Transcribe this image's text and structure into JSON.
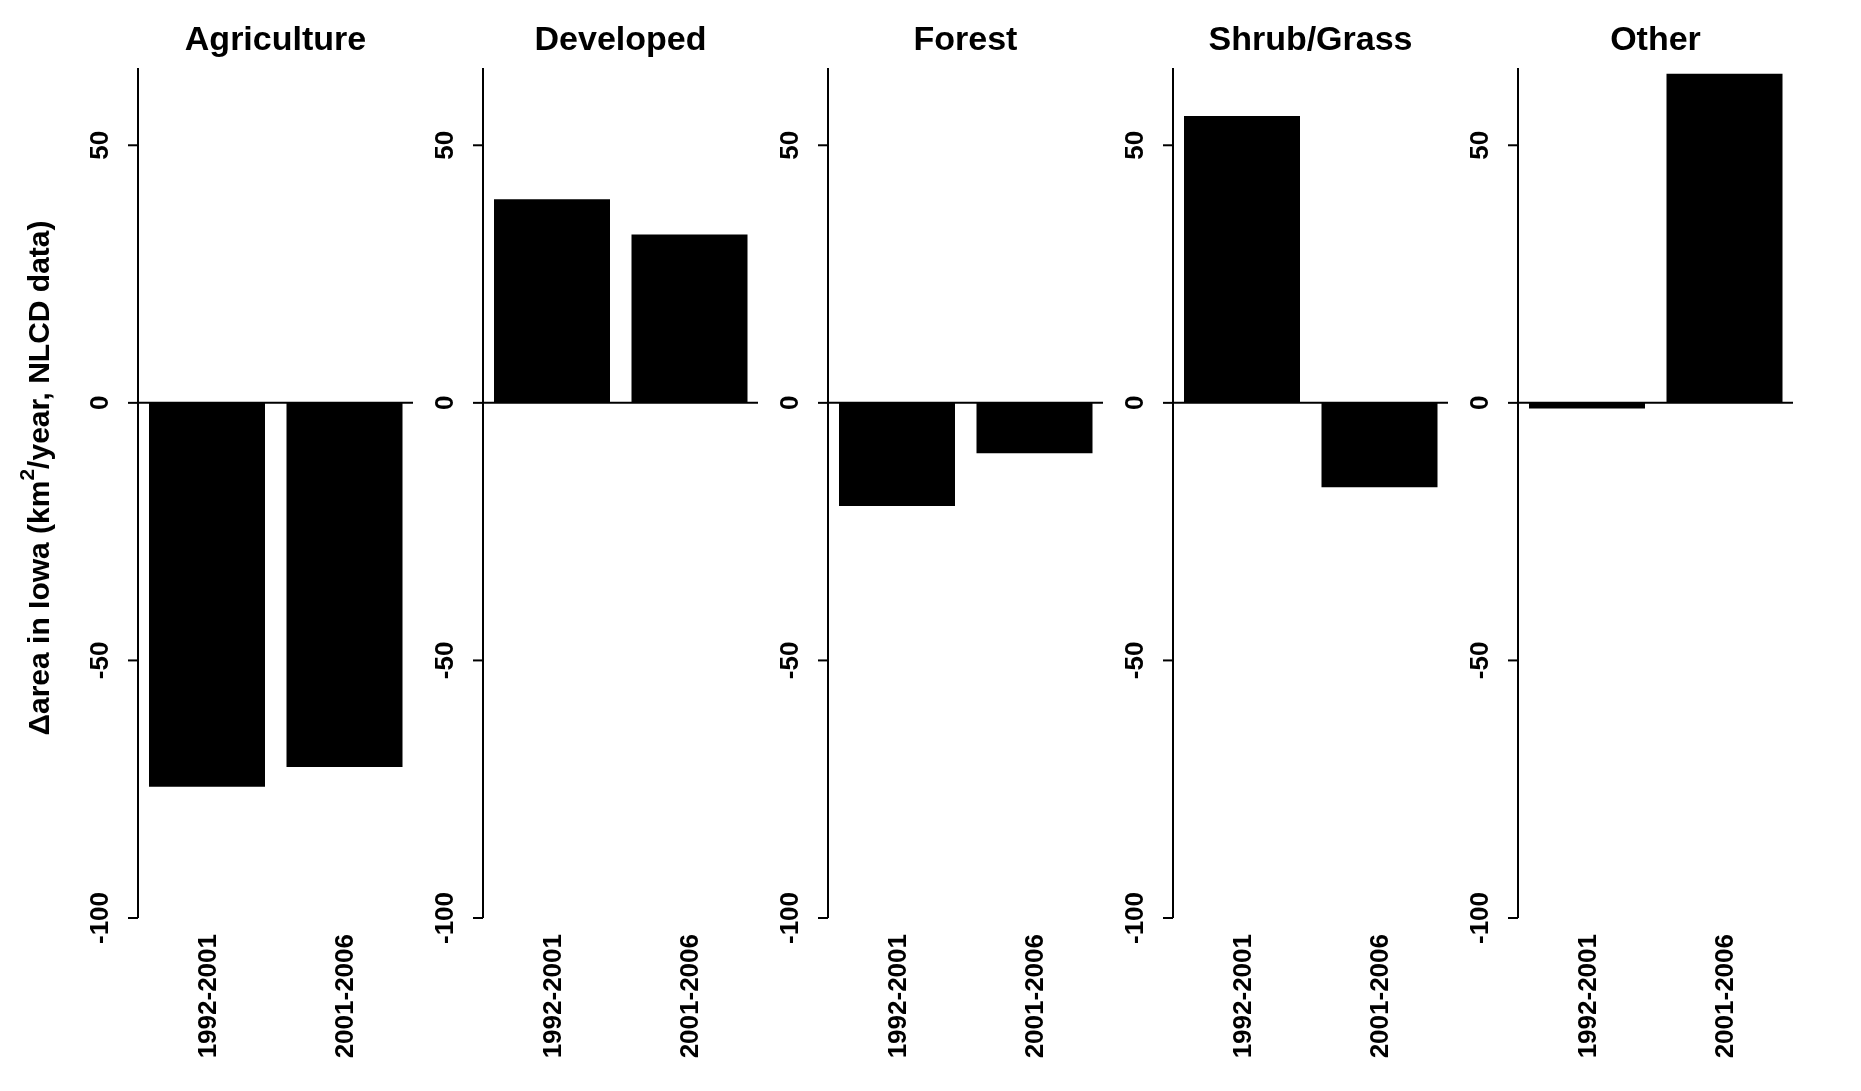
{
  "chart_data": [
    {
      "type": "bar",
      "title": "Agriculture",
      "ylabel": "Δarea in Iowa (km$^{2}$/year,  NLCD data)",
      "categories": [
        "1992-2001",
        "2001-2006"
      ],
      "values": [
        -74.5,
        -70.7
      ],
      "color": "#000000",
      "ylim": [
        -100,
        65
      ],
      "yticks": [
        -100,
        -50,
        0,
        50
      ],
      "ref_lines": [
        {
          "axis": "y",
          "value": 0
        }
      ]
    },
    {
      "type": "bar",
      "title": "Developed",
      "categories": [
        "1992-2001",
        "2001-2006"
      ],
      "values": [
        39.5,
        32.7
      ],
      "color": "#000000",
      "ylim": [
        -100,
        65
      ],
      "yticks": [
        -100,
        -50,
        0,
        50
      ],
      "ref_lines": [
        {
          "axis": "y",
          "value": 0
        }
      ]
    },
    {
      "type": "bar",
      "title": "Forest",
      "categories": [
        "1992-2001",
        "2001-2006"
      ],
      "values": [
        -20,
        -9.8
      ],
      "color": "#000000",
      "ylim": [
        -100,
        65
      ],
      "yticks": [
        -100,
        -50,
        0,
        50
      ],
      "ref_lines": [
        {
          "axis": "y",
          "value": 0
        }
      ]
    },
    {
      "type": "bar",
      "title": "Shrub/Grass",
      "categories": [
        "1992-2001",
        "2001-2006"
      ],
      "values": [
        55.7,
        -16.4
      ],
      "color": "#000000",
      "ylim": [
        -100,
        65
      ],
      "yticks": [
        -100,
        -50,
        0,
        50
      ],
      "ref_lines": [
        {
          "axis": "y",
          "value": 0
        }
      ]
    },
    {
      "type": "bar",
      "title": "Other",
      "categories": [
        "1992-2001",
        "2001-2006"
      ],
      "values": [
        -1.1,
        63.9
      ],
      "color": "#000000",
      "ylim": [
        -100,
        65
      ],
      "yticks": [
        -100,
        -50,
        0,
        50
      ],
      "ref_lines": [
        {
          "axis": "y",
          "value": 0
        }
      ]
    }
  ]
}
